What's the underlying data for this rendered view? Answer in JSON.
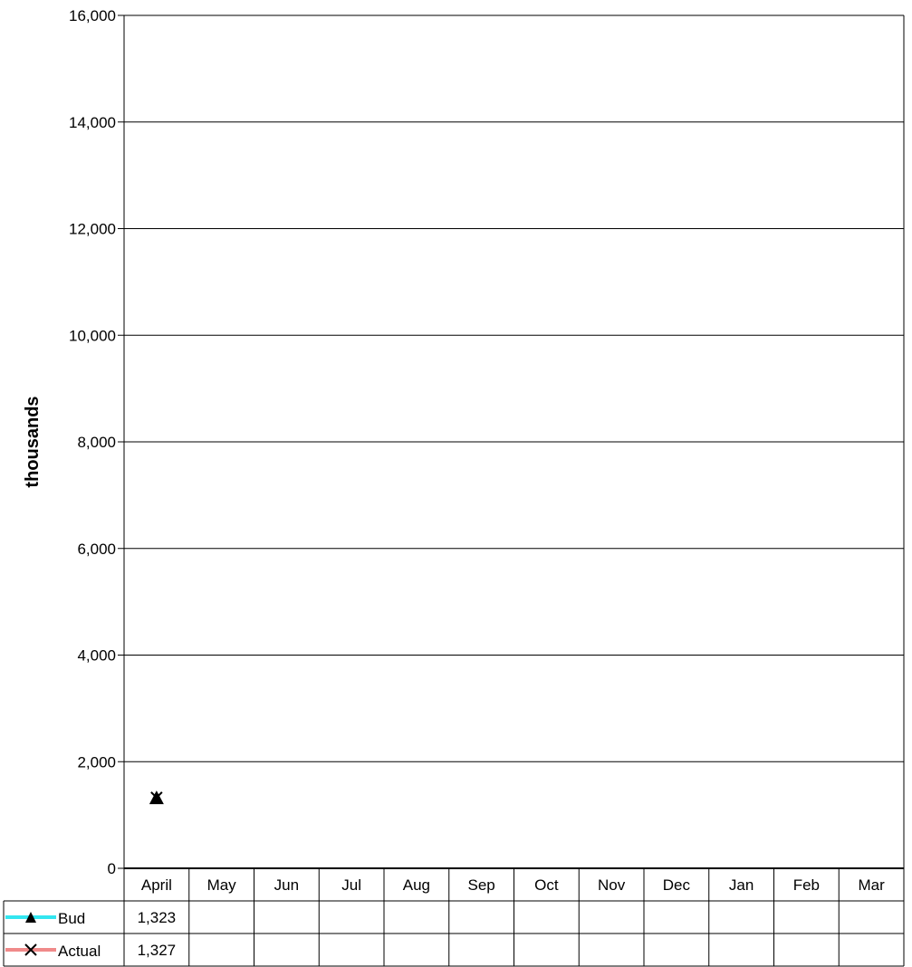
{
  "chart_data": {
    "type": "line",
    "categories": [
      "April",
      "May",
      "Jun",
      "Jul",
      "Aug",
      "Sep",
      "Oct",
      "Nov",
      "Dec",
      "Jan",
      "Feb",
      "Mar"
    ],
    "series": [
      {
        "name": "Bud",
        "values": [
          1323,
          null,
          null,
          null,
          null,
          null,
          null,
          null,
          null,
          null,
          null,
          null
        ],
        "value_labels": [
          "1,323",
          "",
          "",
          "",
          "",
          "",
          "",
          "",
          "",
          "",
          "",
          ""
        ],
        "line_color": "#33e6f0",
        "marker": "triangle",
        "marker_color": "#000000"
      },
      {
        "name": "Actual",
        "values": [
          1327,
          null,
          null,
          null,
          null,
          null,
          null,
          null,
          null,
          null,
          null,
          null
        ],
        "value_labels": [
          "1,327",
          "",
          "",
          "",
          "",
          "",
          "",
          "",
          "",
          "",
          "",
          ""
        ],
        "line_color": "#f08a8a",
        "marker": "x",
        "marker_color": "#000000"
      }
    ],
    "ylabel": "thousands",
    "ylim": [
      0,
      16000
    ],
    "yticks": [
      0,
      2000,
      4000,
      6000,
      8000,
      10000,
      12000,
      14000,
      16000
    ],
    "ytick_labels": [
      "0",
      "2,000",
      "4,000",
      "6,000",
      "8,000",
      "10,000",
      "12,000",
      "14,000",
      "16,000"
    ],
    "grid": true,
    "data_table": true
  }
}
